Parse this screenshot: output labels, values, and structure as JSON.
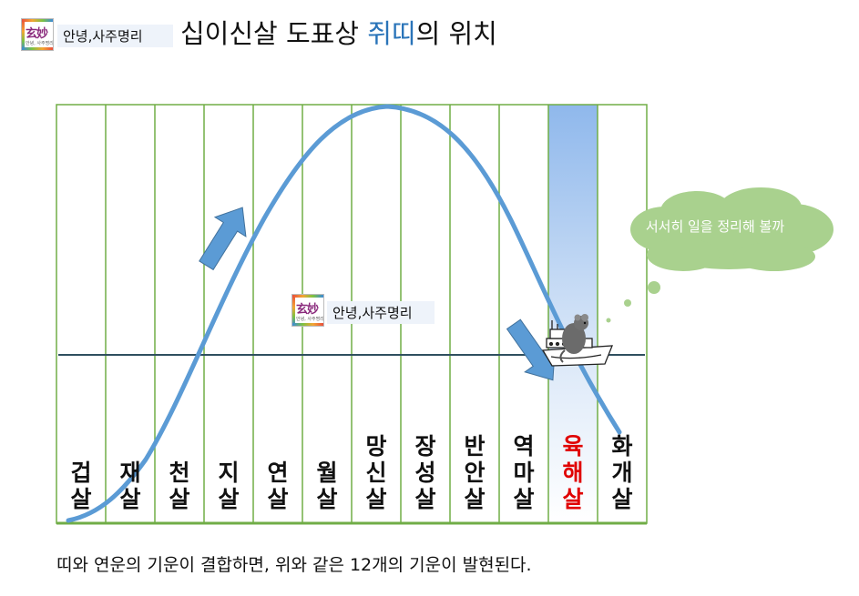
{
  "header": {
    "brand_hanja": "玄妙",
    "brand_small": "안녕, 사주명리",
    "brand_label": "안녕,사주명리",
    "title_prefix": "십이신살 도표상 ",
    "title_highlight": "쥐띠",
    "title_suffix": "의 위치"
  },
  "watermark": {
    "brand_hanja": "玄妙",
    "brand_small": "안녕, 사주명리",
    "brand_label": "안녕,사주명리"
  },
  "columns": [
    {
      "line1": "",
      "line2": "겁",
      "line3": "살"
    },
    {
      "line1": "",
      "line2": "재",
      "line3": "살"
    },
    {
      "line1": "",
      "line2": "천",
      "line3": "살"
    },
    {
      "line1": "",
      "line2": "지",
      "line3": "살"
    },
    {
      "line1": "",
      "line2": "연",
      "line3": "살"
    },
    {
      "line1": "",
      "line2": "월",
      "line3": "살"
    },
    {
      "line1": "망",
      "line2": "신",
      "line3": "살"
    },
    {
      "line1": "장",
      "line2": "성",
      "line3": "살"
    },
    {
      "line1": "반",
      "line2": "안",
      "line3": "살"
    },
    {
      "line1": "역",
      "line2": "마",
      "line3": "살"
    },
    {
      "line1": "육",
      "line2": "해",
      "line3": "살"
    },
    {
      "line1": "화",
      "line2": "개",
      "line3": "살"
    }
  ],
  "highlight_column": "육해살",
  "thought_text": "서서히 일을 정리해 볼까",
  "caption": "띠와 연운의 기운이 결합하면, 위와 같은 12개의 기운이 발현된다.",
  "colors": {
    "grid_line": "#70ad47",
    "curve": "#5b9bd5",
    "arrow": "#5b9bd5",
    "highlight": "#9dc3f0",
    "horizon": "#2f4f5f",
    "thought": "#a9d18e",
    "red_label": "#e00000"
  }
}
